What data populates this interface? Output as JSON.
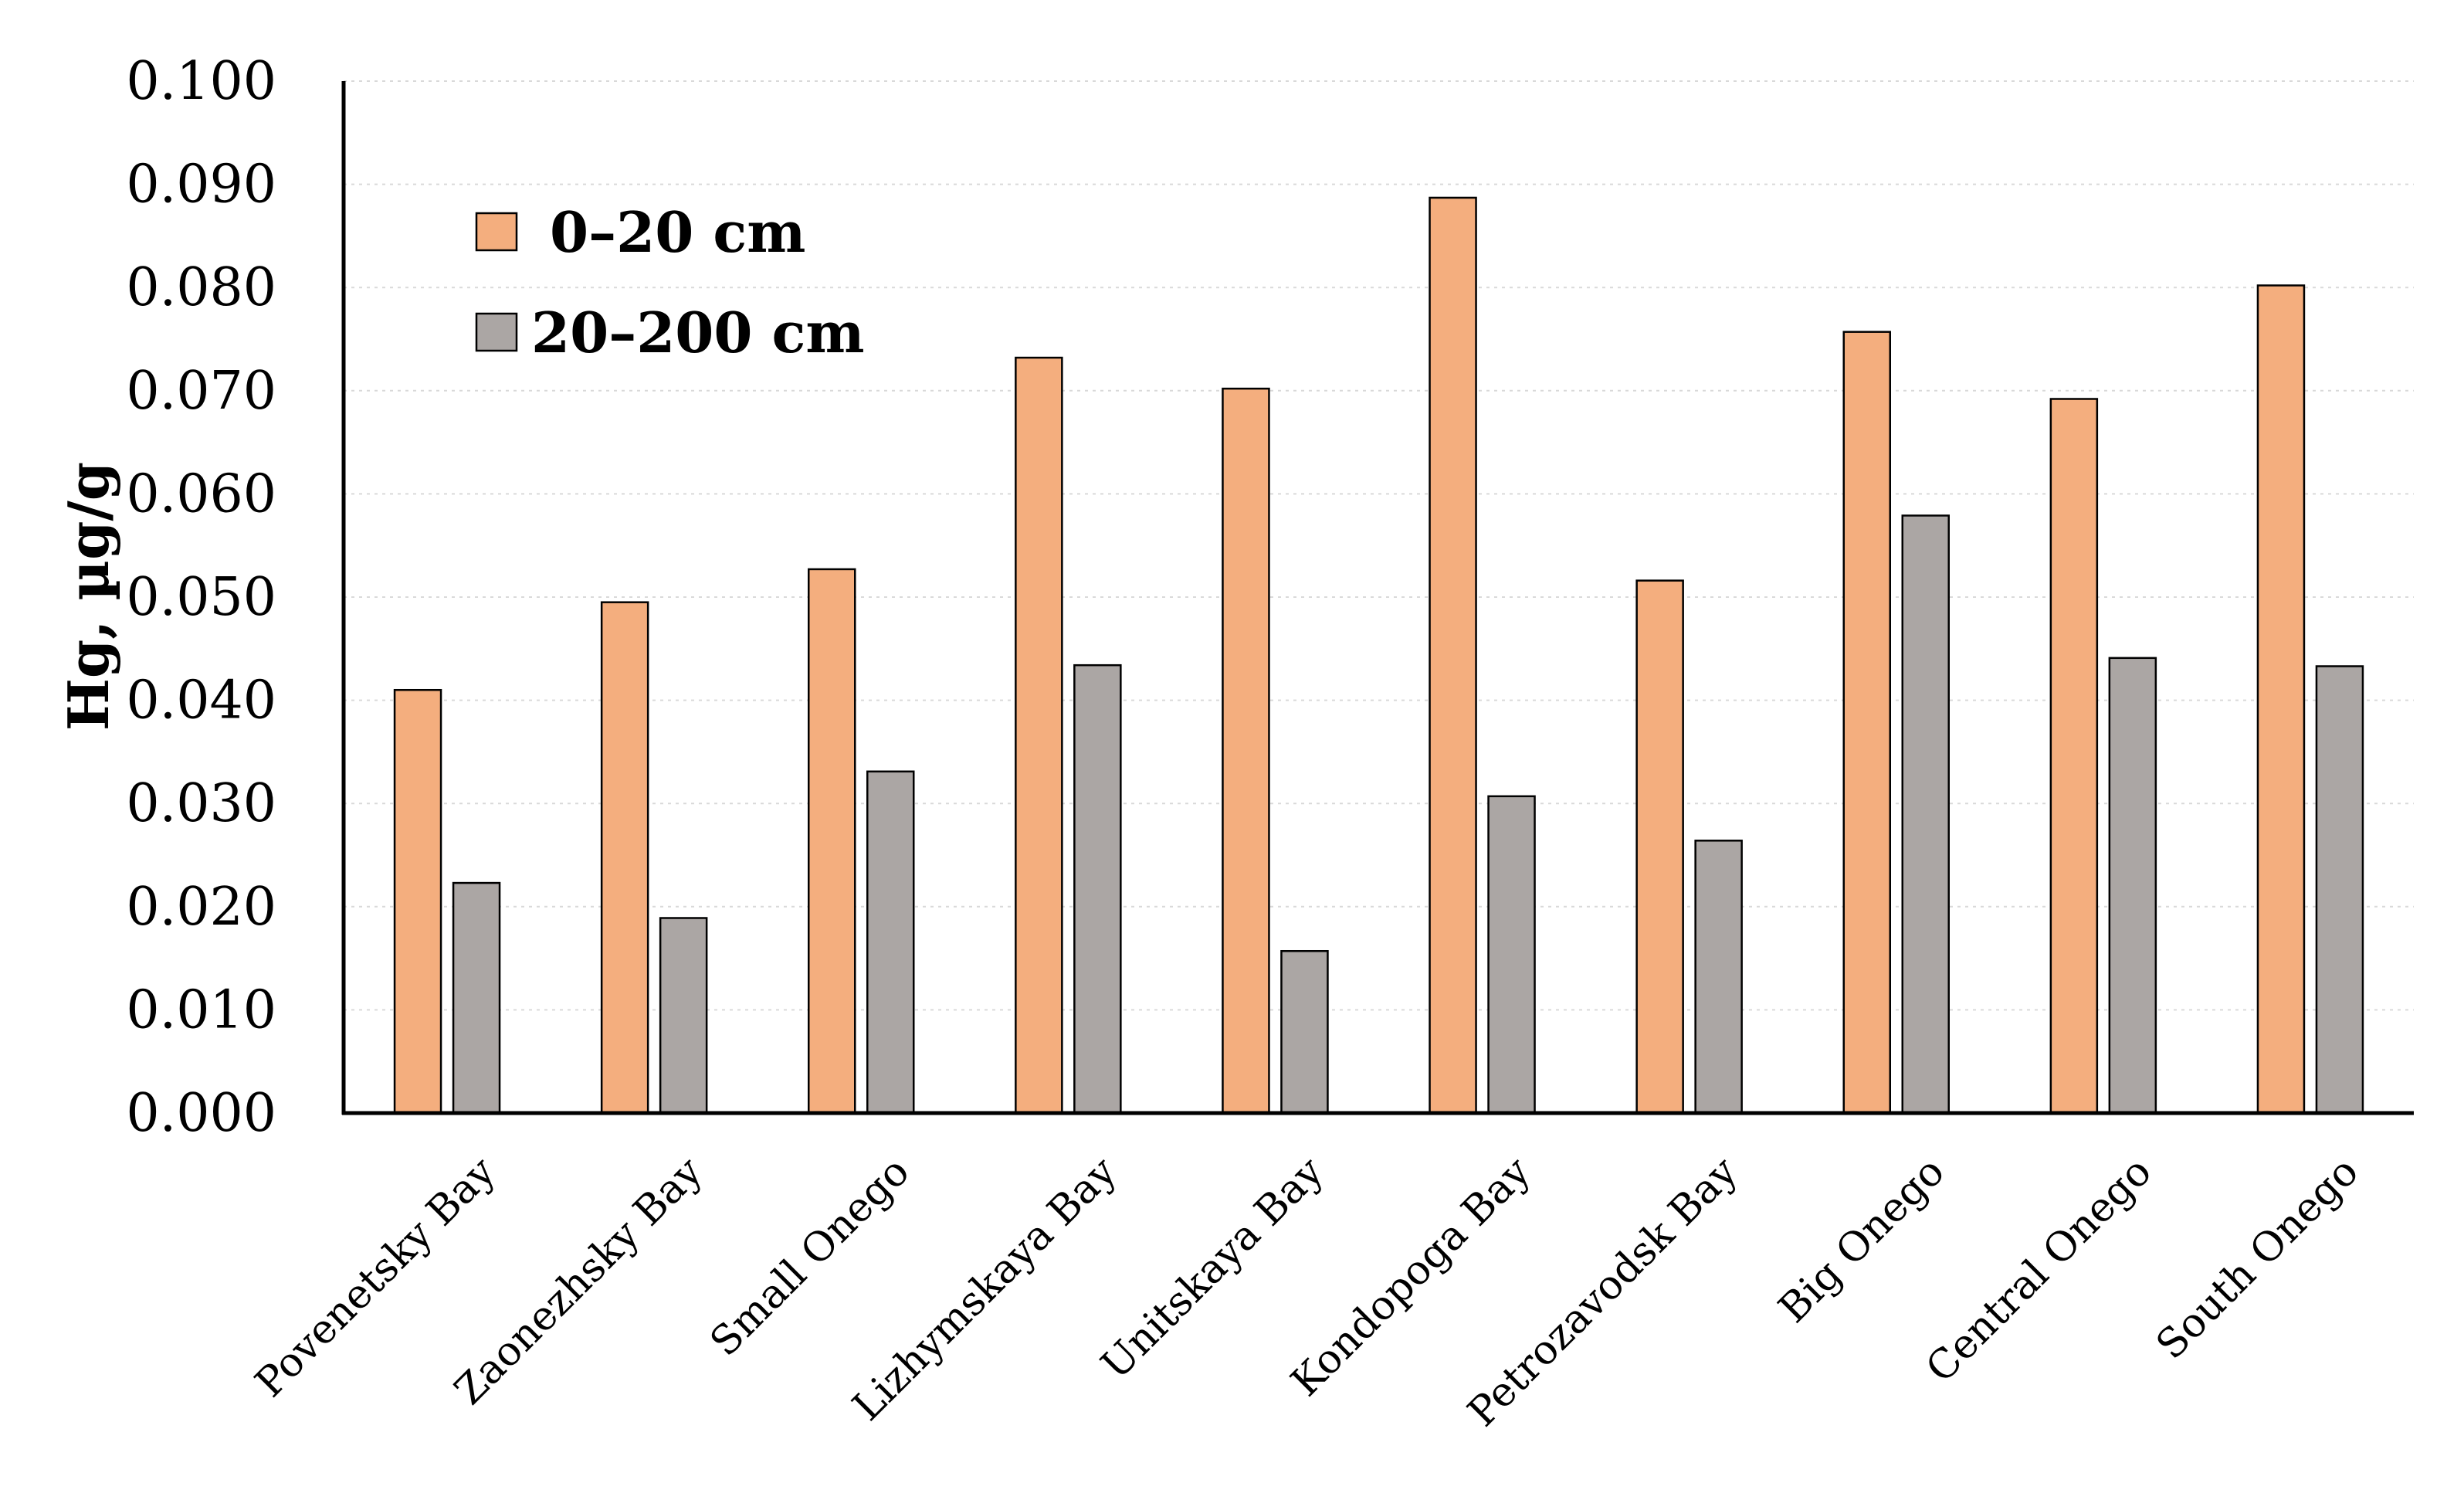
{
  "chart_data": {
    "type": "bar",
    "title": "",
    "xlabel": "",
    "ylabel": "Hg, µg/g",
    "ylim": [
      0,
      0.1
    ],
    "yticks": [
      "0.000",
      "0.010",
      "0.020",
      "0.030",
      "0.040",
      "0.050",
      "0.060",
      "0.070",
      "0.080",
      "0.090",
      "0.100"
    ],
    "grid": "horizontal-dotted",
    "legend_position": "top-left",
    "categories": [
      "Povenetsky Bay",
      "Zaonezhsky Bay",
      "Small Onego",
      "Lizhymskaya Bay",
      "Unitskaya Bay",
      "Kondopoga Bay",
      "Petrozavodsk Bay",
      "Big Onego",
      "Central Onego",
      "South Onego"
    ],
    "series": [
      {
        "name": "0–20 cm",
        "color": "#F4AE7E",
        "values": [
          0.041,
          0.0495,
          0.0527,
          0.0732,
          0.0702,
          0.0887,
          0.0516,
          0.0757,
          0.0692,
          0.0802
        ]
      },
      {
        "name": "20–200 cm",
        "color": "#ABA6A4",
        "values": [
          0.0223,
          0.0189,
          0.0331,
          0.0434,
          0.0157,
          0.0307,
          0.0264,
          0.0579,
          0.0441,
          0.0433
        ]
      }
    ]
  }
}
